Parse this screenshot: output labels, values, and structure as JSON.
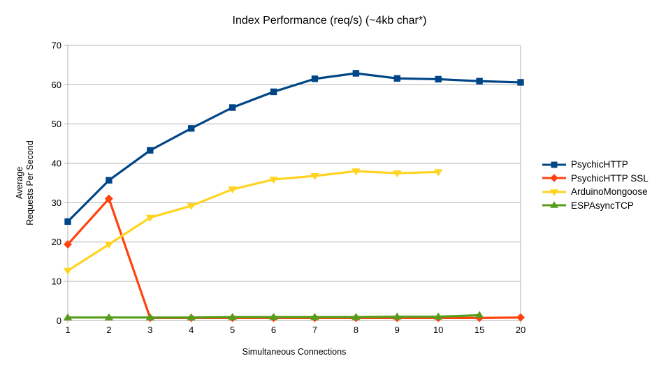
{
  "chart_data": {
    "type": "line",
    "title": "Index Performance (req/s) (~4kb char*)",
    "xlabel": "Simultaneous Connections",
    "ylabel_lines": [
      "Average",
      "Requests Per Second"
    ],
    "categories": [
      "1",
      "2",
      "3",
      "4",
      "5",
      "6",
      "7",
      "8",
      "9",
      "10",
      "15",
      "20"
    ],
    "yticks": [
      0,
      10,
      20,
      30,
      40,
      50,
      60,
      70
    ],
    "ylim": [
      0,
      70
    ],
    "grid": "horizontal",
    "legend_position": "right",
    "axis_color": "#b3b3b3",
    "text_color": "#000000",
    "background_color": "#ffffff",
    "series": [
      {
        "name": "PsychicHTTP",
        "color": "#004586",
        "marker": "square",
        "values": [
          25.2,
          35.7,
          43.3,
          48.9,
          54.2,
          58.2,
          61.5,
          62.9,
          61.6,
          61.4,
          60.9,
          60.6
        ]
      },
      {
        "name": "PsychicHTTP SSL",
        "color": "#ff420e",
        "marker": "diamond",
        "values": [
          19.4,
          31.0,
          0.7,
          0.7,
          0.7,
          0.7,
          0.7,
          0.7,
          0.7,
          0.7,
          0.7,
          0.8
        ]
      },
      {
        "name": "ArduinoMongoose",
        "color": "#ffd320",
        "marker": "triangle-down",
        "values": [
          12.7,
          19.4,
          26.2,
          29.2,
          33.4,
          35.9,
          36.8,
          38.0,
          37.5,
          37.8,
          null,
          null
        ]
      },
      {
        "name": "ESPAsyncTCP",
        "color": "#579d1c",
        "marker": "triangle-up",
        "values": [
          0.8,
          0.8,
          0.8,
          0.8,
          0.9,
          0.9,
          0.9,
          0.9,
          1.0,
          1.0,
          1.4,
          null
        ]
      }
    ]
  }
}
